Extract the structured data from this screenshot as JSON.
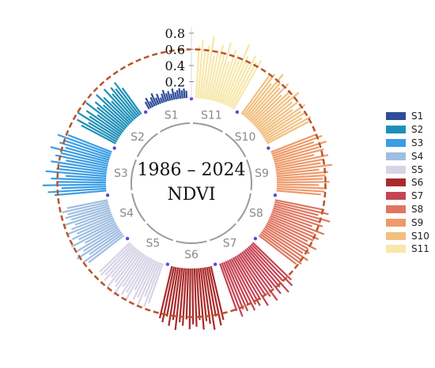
{
  "chart_data": {
    "type": "radial-bar",
    "title": "1986 – 2024",
    "subtitle": "NDVI",
    "rlim": [
      0,
      0.8
    ],
    "radial_ticks": [
      "0.2",
      "0.4",
      "0.6",
      "0.8"
    ],
    "reference_value": 0.6,
    "legend_position": "right",
    "segments": [
      {
        "name": "S11",
        "label": "S11",
        "color": "#F7E7A9",
        "values": [
          0.64,
          0.72,
          0.58,
          0.66,
          0.78,
          0.55,
          0.62,
          0.7,
          0.6,
          0.75,
          0.52,
          0.68,
          0.63,
          0.57,
          0.8,
          0.66,
          0.59,
          0.71,
          0.64,
          0.69
        ]
      },
      {
        "name": "S10",
        "label": "S10",
        "color": "#F1C07F",
        "values": [
          0.58,
          0.64,
          0.52,
          0.7,
          0.6,
          0.55,
          0.66,
          0.5,
          0.62,
          0.57,
          0.68,
          0.54,
          0.61,
          0.49,
          0.65,
          0.56,
          0.6,
          0.53,
          0.63,
          0.58
        ]
      },
      {
        "name": "S9",
        "label": "S9",
        "color": "#EE9A6A",
        "values": [
          0.6,
          0.66,
          0.54,
          0.69,
          0.58,
          0.63,
          0.5,
          0.67,
          0.61,
          0.56,
          0.7,
          0.53,
          0.64,
          0.6,
          0.57,
          0.65,
          0.52,
          0.62,
          0.59,
          0.55
        ]
      },
      {
        "name": "S8",
        "label": "S8",
        "color": "#E07660",
        "values": [
          0.62,
          0.68,
          0.56,
          0.72,
          0.6,
          0.65,
          0.53,
          0.7,
          0.58,
          0.66,
          0.61,
          0.55,
          0.69,
          0.6,
          0.64,
          0.57,
          0.67,
          0.59,
          0.63,
          0.58
        ]
      },
      {
        "name": "S7",
        "label": "S7",
        "color": "#C54454",
        "values": [
          0.66,
          0.72,
          0.6,
          0.75,
          0.63,
          0.7,
          0.58,
          0.74,
          0.65,
          0.61,
          0.73,
          0.62,
          0.68,
          0.64,
          0.7,
          0.6,
          0.67,
          0.63,
          0.71,
          0.62
        ]
      },
      {
        "name": "S6",
        "label": "S6",
        "color": "#A92A2A",
        "values": [
          0.68,
          0.74,
          0.62,
          0.78,
          0.7,
          0.66,
          0.76,
          0.64,
          0.72,
          0.69,
          0.75,
          0.63,
          0.71,
          0.67,
          0.77,
          0.65,
          0.73,
          0.62,
          0.7,
          0.66
        ]
      },
      {
        "name": "S5",
        "label": "S5",
        "color": "#D8D3E6",
        "values": [
          0.52,
          0.58,
          0.46,
          0.62,
          0.5,
          0.55,
          0.44,
          0.6,
          0.51,
          0.57,
          0.48,
          0.63,
          0.53,
          0.49,
          0.59,
          0.47,
          0.56,
          0.5,
          0.54,
          0.52
        ]
      },
      {
        "name": "S4",
        "label": "S4",
        "color": "#9FBEE0",
        "values": [
          0.55,
          0.6,
          0.48,
          0.64,
          0.52,
          0.58,
          0.45,
          0.62,
          0.5,
          0.57,
          0.49,
          0.6,
          0.53,
          0.47,
          0.61,
          0.5,
          0.56,
          0.52,
          0.58,
          0.51
        ]
      },
      {
        "name": "S3",
        "label": "S3",
        "color": "#3A9DE5",
        "values": [
          0.64,
          0.72,
          0.55,
          0.78,
          0.6,
          0.68,
          0.5,
          0.75,
          0.62,
          0.58,
          0.7,
          0.52,
          0.66,
          0.6,
          0.74,
          0.56,
          0.65,
          0.6,
          0.7,
          0.58
        ]
      },
      {
        "name": "S2",
        "label": "S2",
        "color": "#1F8FB7",
        "values": [
          0.48,
          0.56,
          0.42,
          0.6,
          0.45,
          0.52,
          0.38,
          0.58,
          0.44,
          0.5,
          0.4,
          0.55,
          0.46,
          0.36,
          0.53,
          0.42,
          0.49,
          0.44,
          0.51,
          0.4
        ]
      },
      {
        "name": "S1",
        "label": "S1",
        "color": "#2D4C9A",
        "values": [
          0.1,
          0.14,
          0.08,
          0.12,
          0.16,
          0.09,
          0.13,
          0.07,
          0.11,
          0.15,
          0.1,
          0.12,
          0.08,
          0.14,
          0.09,
          0.11,
          0.13,
          0.1,
          0.12,
          0.09
        ]
      }
    ]
  }
}
